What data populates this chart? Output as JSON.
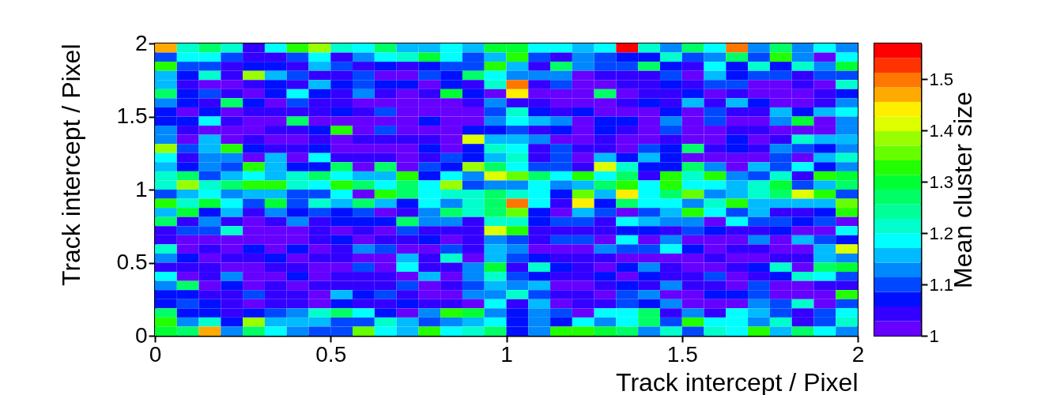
{
  "chart_data": {
    "type": "heatmap",
    "xlabel": "Track intercept / Pixel",
    "ylabel": "Track intercept / Pixel",
    "clabel": "Mean cluster size",
    "xlim": [
      0,
      2
    ],
    "xticks": [
      0,
      0.5,
      1,
      1.5,
      2
    ],
    "ylim": [
      0,
      2
    ],
    "yticks": [
      0,
      0.5,
      1,
      1.5,
      2
    ],
    "clim": [
      1,
      1.57
    ],
    "cticks": [
      1,
      1.1,
      1.2,
      1.3,
      1.4,
      1.5
    ],
    "cells": [
      [
        1.47,
        1.22,
        1.26,
        1.22,
        1.04,
        1.19,
        1.32,
        1.39,
        1.22,
        1.19,
        1.26,
        1.16,
        1.16,
        1.19,
        1.16,
        1.3,
        1.3,
        1.19,
        1.19,
        1.16,
        1.19,
        1.56,
        1.22,
        1.13,
        1.26,
        1.19,
        1.5,
        1.13,
        1.27,
        1.13,
        1.19,
        1.13
      ],
      [
        1.1,
        1.19,
        1.19,
        1.1,
        1.04,
        1.04,
        1.1,
        1.19,
        1.04,
        1.13,
        1.19,
        1.22,
        1.3,
        1.19,
        1.1,
        1.16,
        1.33,
        1.1,
        1.04,
        1.13,
        1.1,
        1.07,
        1.07,
        1.22,
        1.1,
        1.13,
        1.26,
        1.1,
        1.32,
        1.13,
        1.01,
        1.19
      ],
      [
        1.32,
        1.1,
        1.1,
        1.04,
        1.07,
        1.07,
        1.04,
        1.16,
        1.1,
        1.04,
        1.07,
        1.04,
        1.07,
        1.1,
        1.1,
        1.32,
        1.16,
        1.04,
        1.27,
        1.13,
        1.1,
        1.1,
        1.26,
        1.07,
        1.04,
        1.19,
        1.07,
        1.22,
        1.07,
        1.22,
        1.13,
        1.3
      ],
      [
        1.16,
        1.07,
        1.22,
        1.04,
        1.39,
        1.16,
        1.1,
        1.04,
        1.04,
        1.1,
        1.01,
        1.01,
        1.1,
        1.07,
        1.26,
        1.19,
        1.13,
        1.13,
        1.13,
        1.01,
        1.04,
        1.04,
        1.04,
        1.1,
        1.01,
        1.16,
        1.07,
        1.1,
        1.1,
        1.04,
        1.1,
        1.1
      ],
      [
        1.16,
        1.04,
        1.01,
        1.01,
        1.04,
        1.07,
        1.04,
        1.16,
        1.07,
        1.1,
        1.07,
        1.07,
        1.01,
        1.07,
        1.04,
        1.22,
        1.5,
        1.04,
        1.1,
        1.01,
        1.01,
        1.04,
        1.04,
        1.07,
        1.04,
        1.1,
        1.1,
        1.01,
        1.01,
        1.04,
        1.01,
        1.22
      ],
      [
        1.26,
        1.07,
        1.1,
        1.04,
        1.01,
        1.07,
        1.19,
        1.07,
        1.04,
        1.13,
        1.04,
        1.01,
        1.04,
        1.3,
        1.07,
        1.01,
        1.44,
        1.01,
        1.01,
        1.01,
        1.27,
        1.01,
        1.04,
        1.04,
        1.07,
        1.01,
        1.04,
        1.01,
        1.01,
        1.01,
        1.04,
        1.07
      ],
      [
        1.13,
        1.07,
        1.04,
        1.26,
        1.07,
        1.01,
        1.1,
        1.04,
        1.04,
        1.01,
        1.01,
        1.01,
        1.01,
        1.01,
        1.04,
        1.13,
        1.04,
        1.04,
        1.01,
        1.01,
        1.01,
        1.04,
        1.07,
        1.04,
        1.16,
        1.04,
        1.16,
        1.07,
        1.01,
        1.01,
        1.04,
        1.13
      ],
      [
        1.07,
        1.01,
        1.07,
        1.01,
        1.04,
        1.04,
        1.04,
        1.04,
        1.07,
        1.04,
        1.1,
        1.01,
        1.01,
        1.01,
        1.01,
        1.1,
        1.22,
        1.07,
        1.04,
        1.07,
        1.01,
        1.01,
        1.01,
        1.07,
        1.01,
        1.1,
        1.04,
        1.04,
        1.16,
        1.07,
        1.16,
        1.19
      ],
      [
        1.07,
        1.07,
        1.19,
        1.04,
        1.01,
        1.01,
        1.26,
        1.01,
        1.01,
        1.01,
        1.01,
        1.01,
        1.07,
        1.01,
        1.01,
        1.13,
        1.19,
        1.16,
        1.13,
        1.01,
        1.07,
        1.07,
        1.01,
        1.13,
        1.01,
        1.1,
        1.01,
        1.01,
        1.13,
        1.3,
        1.01,
        1.13
      ],
      [
        1.13,
        1.04,
        1.01,
        1.01,
        1.01,
        1.04,
        1.04,
        1.07,
        1.32,
        1.01,
        1.1,
        1.01,
        1.01,
        1.01,
        1.07,
        1.07,
        1.1,
        1.04,
        1.07,
        1.01,
        1.07,
        1.04,
        1.01,
        1.1,
        1.01,
        1.01,
        1.04,
        1.04,
        1.01,
        1.01,
        1.01,
        1.13
      ],
      [
        1.13,
        1.01,
        1.16,
        1.01,
        1.04,
        1.01,
        1.01,
        1.04,
        1.01,
        1.04,
        1.04,
        1.04,
        1.04,
        1.01,
        1.42,
        1.16,
        1.16,
        1.13,
        1.01,
        1.01,
        1.04,
        1.01,
        1.01,
        1.04,
        1.01,
        1.01,
        1.07,
        1.01,
        1.04,
        1.22,
        1.16,
        1.16
      ],
      [
        1.39,
        1.1,
        1.16,
        1.32,
        1.07,
        1.04,
        1.04,
        1.07,
        1.01,
        1.01,
        1.01,
        1.01,
        1.07,
        1.01,
        1.07,
        1.22,
        1.19,
        1.04,
        1.1,
        1.04,
        1.04,
        1.01,
        1.1,
        1.07,
        1.27,
        1.04,
        1.07,
        1.04,
        1.13,
        1.1,
        1.07,
        1.13
      ],
      [
        1.19,
        1.04,
        1.13,
        1.13,
        1.01,
        1.16,
        1.01,
        1.19,
        1.04,
        1.04,
        1.04,
        1.01,
        1.04,
        1.1,
        1.07,
        1.16,
        1.22,
        1.04,
        1.1,
        1.01,
        1.16,
        1.07,
        1.16,
        1.07,
        1.01,
        1.01,
        1.01,
        1.01,
        1.1,
        1.01,
        1.16,
        1.22
      ],
      [
        1.16,
        1.07,
        1.13,
        1.1,
        1.32,
        1.16,
        1.07,
        1.07,
        1.26,
        1.01,
        1.27,
        1.01,
        1.1,
        1.07,
        1.39,
        1.26,
        1.19,
        1.1,
        1.1,
        1.04,
        1.42,
        1.22,
        1.07,
        1.07,
        1.27,
        1.13,
        1.01,
        1.16,
        1.1,
        1.19,
        1.07,
        1.13
      ],
      [
        1.22,
        1.27,
        1.1,
        1.16,
        1.19,
        1.16,
        1.22,
        1.26,
        1.19,
        1.16,
        1.16,
        1.32,
        1.07,
        1.19,
        1.13,
        1.42,
        1.36,
        1.27,
        1.19,
        1.33,
        1.19,
        1.27,
        1.04,
        1.33,
        1.22,
        1.33,
        1.13,
        1.1,
        1.22,
        1.04,
        1.33,
        1.3
      ],
      [
        1.22,
        1.38,
        1.22,
        1.26,
        1.33,
        1.33,
        1.22,
        1.19,
        1.33,
        1.27,
        1.19,
        1.27,
        1.19,
        1.38,
        1.1,
        1.13,
        1.13,
        1.19,
        1.13,
        1.16,
        1.27,
        1.32,
        1.19,
        1.33,
        1.19,
        1.19,
        1.16,
        1.22,
        1.3,
        1.1,
        1.16,
        1.26
      ],
      [
        1.1,
        1.16,
        1.19,
        1.13,
        1.16,
        1.16,
        1.1,
        1.1,
        1.19,
        1.01,
        1.33,
        1.27,
        1.19,
        1.22,
        1.22,
        1.26,
        1.22,
        1.19,
        1.07,
        1.36,
        1.16,
        1.44,
        1.19,
        1.26,
        1.36,
        1.13,
        1.16,
        1.22,
        1.26,
        1.42,
        1.33,
        1.1
      ],
      [
        1.32,
        1.22,
        1.3,
        1.19,
        1.1,
        1.3,
        1.1,
        1.22,
        1.16,
        1.27,
        1.16,
        1.07,
        1.19,
        1.13,
        1.22,
        1.27,
        1.5,
        1.19,
        1.04,
        1.44,
        1.07,
        1.27,
        1.19,
        1.19,
        1.13,
        1.22,
        1.33,
        1.16,
        1.16,
        1.16,
        1.16,
        1.36
      ],
      [
        1.16,
        1.3,
        1.07,
        1.16,
        1.04,
        1.13,
        1.07,
        1.1,
        1.07,
        1.1,
        1.01,
        1.04,
        1.13,
        1.27,
        1.22,
        1.27,
        1.36,
        1.07,
        1.01,
        1.16,
        1.1,
        1.01,
        1.1,
        1.16,
        1.33,
        1.19,
        1.1,
        1.16,
        1.04,
        1.04,
        1.07,
        1.32
      ],
      [
        1.27,
        1.04,
        1.13,
        1.04,
        1.01,
        1.04,
        1.13,
        1.04,
        1.07,
        1.07,
        1.07,
        1.27,
        1.13,
        1.13,
        1.04,
        1.22,
        1.22,
        1.07,
        1.1,
        1.1,
        1.04,
        1.19,
        1.16,
        1.13,
        1.13,
        1.01,
        1.19,
        1.1,
        1.1,
        1.07,
        1.1,
        1.01
      ],
      [
        1.04,
        1.1,
        1.1,
        1.22,
        1.01,
        1.01,
        1.01,
        1.04,
        1.01,
        1.04,
        1.01,
        1.1,
        1.04,
        1.04,
        1.04,
        1.42,
        1.32,
        1.04,
        1.04,
        1.04,
        1.04,
        1.07,
        1.07,
        1.04,
        1.1,
        1.07,
        1.04,
        1.04,
        1.07,
        1.01,
        1.01,
        1.19
      ],
      [
        1.04,
        1.01,
        1.01,
        1.01,
        1.01,
        1.01,
        1.01,
        1.04,
        1.07,
        1.01,
        1.04,
        1.04,
        1.07,
        1.01,
        1.04,
        1.13,
        1.1,
        1.04,
        1.1,
        1.1,
        1.01,
        1.19,
        1.01,
        1.13,
        1.01,
        1.01,
        1.01,
        1.13,
        1.01,
        1.16,
        1.1,
        1.07
      ],
      [
        1.22,
        1.01,
        1.04,
        1.01,
        1.07,
        1.01,
        1.07,
        1.01,
        1.04,
        1.13,
        1.1,
        1.01,
        1.01,
        1.1,
        1.04,
        1.16,
        1.13,
        1.01,
        1.01,
        1.01,
        1.13,
        1.1,
        1.1,
        1.19,
        1.07,
        1.01,
        1.04,
        1.04,
        1.01,
        1.01,
        1.16,
        1.42
      ],
      [
        1.13,
        1.07,
        1.01,
        1.04,
        1.04,
        1.07,
        1.01,
        1.04,
        1.04,
        1.01,
        1.01,
        1.16,
        1.04,
        1.22,
        1.01,
        1.16,
        1.1,
        1.07,
        1.04,
        1.04,
        1.04,
        1.01,
        1.01,
        1.01,
        1.01,
        1.04,
        1.01,
        1.01,
        1.04,
        1.04,
        1.16,
        1.13
      ],
      [
        1.04,
        1.04,
        1.04,
        1.01,
        1.01,
        1.04,
        1.04,
        1.01,
        1.01,
        1.1,
        1.01,
        1.19,
        1.04,
        1.04,
        1.13,
        1.3,
        1.04,
        1.22,
        1.07,
        1.04,
        1.01,
        1.07,
        1.13,
        1.04,
        1.01,
        1.01,
        1.04,
        1.07,
        1.22,
        1.01,
        1.27,
        1.3
      ],
      [
        1.19,
        1.01,
        1.04,
        1.13,
        1.01,
        1.01,
        1.07,
        1.01,
        1.04,
        1.04,
        1.04,
        1.01,
        1.16,
        1.01,
        1.13,
        1.22,
        1.1,
        1.07,
        1.04,
        1.04,
        1.07,
        1.01,
        1.07,
        1.04,
        1.04,
        1.1,
        1.01,
        1.04,
        1.07,
        1.22,
        1.19,
        1.1
      ],
      [
        1.13,
        1.27,
        1.01,
        1.07,
        1.01,
        1.04,
        1.01,
        1.04,
        1.04,
        1.04,
        1.04,
        1.1,
        1.01,
        1.04,
        1.1,
        1.16,
        1.13,
        1.16,
        1.01,
        1.01,
        1.04,
        1.07,
        1.04,
        1.13,
        1.04,
        1.04,
        1.01,
        1.1,
        1.01,
        1.01,
        1.04,
        1.04
      ],
      [
        1.07,
        1.07,
        1.04,
        1.04,
        1.1,
        1.04,
        1.04,
        1.01,
        1.16,
        1.07,
        1.1,
        1.04,
        1.01,
        1.01,
        1.13,
        1.13,
        1.22,
        1.1,
        1.04,
        1.04,
        1.01,
        1.1,
        1.13,
        1.01,
        1.01,
        1.07,
        1.07,
        1.1,
        1.01,
        1.01,
        1.01,
        1.32
      ],
      [
        1.07,
        1.1,
        1.07,
        1.04,
        1.01,
        1.04,
        1.04,
        1.01,
        1.07,
        1.04,
        1.04,
        1.07,
        1.04,
        1.04,
        1.01,
        1.19,
        1.04,
        1.16,
        1.01,
        1.04,
        1.04,
        1.1,
        1.07,
        1.13,
        1.01,
        1.01,
        1.01,
        1.13,
        1.1,
        1.22,
        1.01,
        1.1
      ],
      [
        1.26,
        1.07,
        1.07,
        1.04,
        1.07,
        1.1,
        1.13,
        1.22,
        1.26,
        1.19,
        1.07,
        1.01,
        1.13,
        1.32,
        1.3,
        1.13,
        1.07,
        1.13,
        1.1,
        1.01,
        1.19,
        1.19,
        1.27,
        1.04,
        1.13,
        1.04,
        1.19,
        1.16,
        1.1,
        1.04,
        1.1,
        1.19
      ],
      [
        1.32,
        1.13,
        1.22,
        1.07,
        1.39,
        1.16,
        1.16,
        1.16,
        1.1,
        1.1,
        1.22,
        1.16,
        1.1,
        1.13,
        1.16,
        1.19,
        1.07,
        1.13,
        1.07,
        1.19,
        1.13,
        1.19,
        1.27,
        1.1,
        1.32,
        1.19,
        1.19,
        1.13,
        1.22,
        1.04,
        1.1,
        1.22
      ],
      [
        1.3,
        1.27,
        1.47,
        1.13,
        1.27,
        1.19,
        1.13,
        1.1,
        1.1,
        1.36,
        1.19,
        1.16,
        1.33,
        1.19,
        1.22,
        1.27,
        1.07,
        1.13,
        1.32,
        1.32,
        1.3,
        1.27,
        1.13,
        1.22,
        1.1,
        1.22,
        1.19,
        1.33,
        1.16,
        1.27,
        1.19,
        1.13
      ]
    ]
  }
}
